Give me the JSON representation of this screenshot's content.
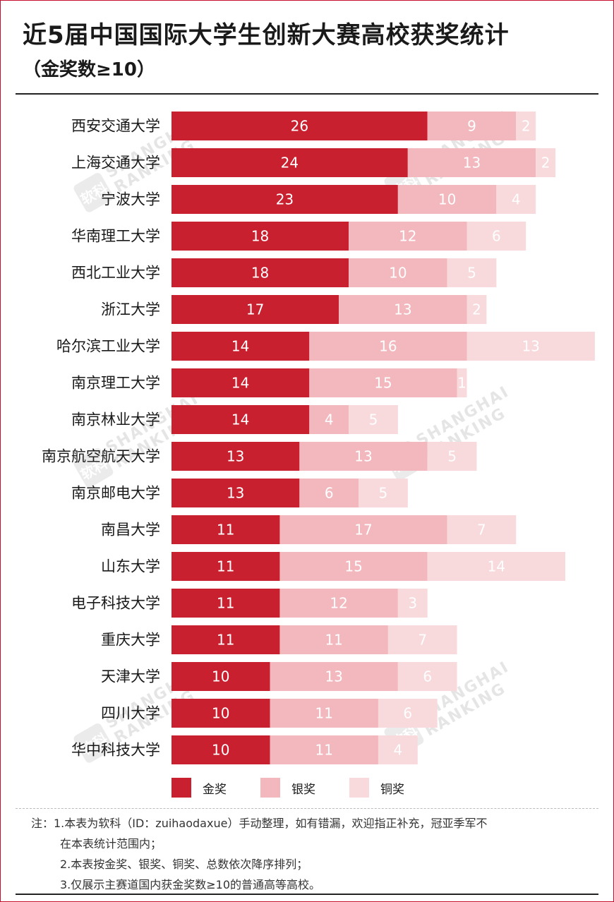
{
  "title": "近5届中国国际大学生创新大赛高校获奖统计",
  "subtitle": "（金奖数≥10）",
  "colors": {
    "gold": "#c8202f",
    "silver": "#f2b8be",
    "bronze": "#f8d9dc",
    "frame": "#c8102e"
  },
  "watermark": {
    "logo": "软科",
    "line1": "SHANGHAI",
    "line2": "RANKING"
  },
  "chart_data": {
    "type": "bar",
    "orientation": "horizontal",
    "stacked": true,
    "categories": [
      "西安交通大学",
      "上海交通大学",
      "宁波大学",
      "华南理工大学",
      "西北工业大学",
      "浙江大学",
      "哈尔滨工业大学",
      "南京理工大学",
      "南京林业大学",
      "南京航空航天大学",
      "南京邮电大学",
      "南昌大学",
      "山东大学",
      "电子科技大学",
      "重庆大学",
      "天津大学",
      "四川大学",
      "华中科技大学"
    ],
    "series": [
      {
        "name": "金奖",
        "values": [
          26,
          24,
          23,
          18,
          18,
          17,
          14,
          14,
          14,
          13,
          13,
          11,
          11,
          11,
          11,
          10,
          10,
          10
        ]
      },
      {
        "name": "银奖",
        "values": [
          9,
          13,
          10,
          12,
          10,
          13,
          16,
          15,
          4,
          13,
          6,
          17,
          15,
          12,
          11,
          13,
          11,
          11
        ]
      },
      {
        "name": "铜奖",
        "values": [
          2,
          2,
          4,
          6,
          5,
          2,
          13,
          1,
          5,
          5,
          5,
          7,
          14,
          3,
          7,
          6,
          6,
          4
        ]
      }
    ],
    "legend_position": "bottom",
    "grid": false
  },
  "notes": [
    "注：1.本表为软科（ID：zuihaodaxue）手动整理，如有错漏，欢迎指正补充，冠亚季军不",
    "在本表统计范围内；",
    "2.本表按金奖、银奖、铜奖、总数依次降序排列；",
    "3.仅展示主赛道国内获金奖数≥10的普通高等高校。"
  ]
}
